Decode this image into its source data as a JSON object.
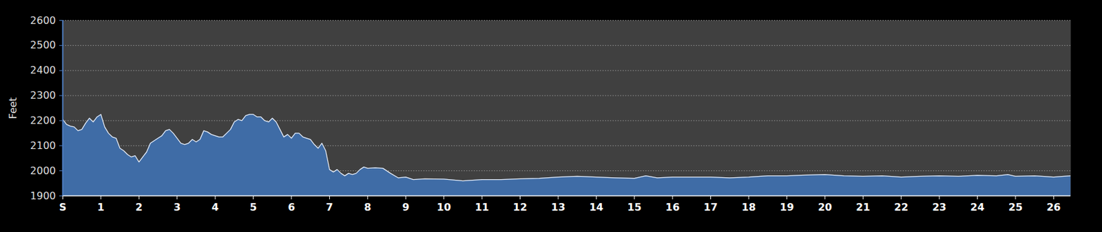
{
  "chart_data": {
    "type": "area",
    "ylabel": "Feet",
    "color": "#3f6ca6",
    "grid": true,
    "x": [
      0,
      0.1,
      0.2,
      0.3,
      0.4,
      0.5,
      0.6,
      0.7,
      0.8,
      0.9,
      1.0,
      1.1,
      1.2,
      1.3,
      1.4,
      1.5,
      1.6,
      1.7,
      1.8,
      1.9,
      2.0,
      2.1,
      2.2,
      2.3,
      2.4,
      2.5,
      2.6,
      2.7,
      2.8,
      2.9,
      3.0,
      3.1,
      3.2,
      3.3,
      3.4,
      3.5,
      3.6,
      3.7,
      3.8,
      3.9,
      4.0,
      4.1,
      4.2,
      4.3,
      4.4,
      4.5,
      4.6,
      4.7,
      4.8,
      4.9,
      5.0,
      5.1,
      5.2,
      5.3,
      5.4,
      5.5,
      5.6,
      5.7,
      5.8,
      5.9,
      6.0,
      6.1,
      6.2,
      6.3,
      6.4,
      6.5,
      6.6,
      6.7,
      6.8,
      6.9,
      7.0,
      7.1,
      7.2,
      7.3,
      7.4,
      7.5,
      7.6,
      7.7,
      7.8,
      7.9,
      8.0,
      8.2,
      8.4,
      8.5,
      8.6,
      8.8,
      9.0,
      9.2,
      9.5,
      10.0,
      10.5,
      11.0,
      11.5,
      12.0,
      12.5,
      13.0,
      13.5,
      14.0,
      14.5,
      15.0,
      15.3,
      15.6,
      16.0,
      16.5,
      17.0,
      17.5,
      18.0,
      18.5,
      19.0,
      19.5,
      20.0,
      20.5,
      21.0,
      21.5,
      22.0,
      22.5,
      23.0,
      23.5,
      24.0,
      24.5,
      24.8,
      25.0,
      25.5,
      26.0,
      26.45
    ],
    "values": [
      2205,
      2185,
      2178,
      2175,
      2160,
      2165,
      2190,
      2210,
      2195,
      2215,
      2225,
      2175,
      2150,
      2135,
      2130,
      2090,
      2080,
      2065,
      2055,
      2060,
      2035,
      2055,
      2075,
      2110,
      2120,
      2130,
      2140,
      2160,
      2165,
      2150,
      2130,
      2110,
      2105,
      2110,
      2125,
      2115,
      2125,
      2160,
      2155,
      2145,
      2140,
      2135,
      2135,
      2150,
      2165,
      2195,
      2205,
      2200,
      2220,
      2225,
      2225,
      2215,
      2215,
      2200,
      2195,
      2210,
      2195,
      2165,
      2135,
      2145,
      2130,
      2150,
      2150,
      2135,
      2130,
      2125,
      2105,
      2090,
      2110,
      2080,
      2005,
      1995,
      2005,
      1990,
      1980,
      1990,
      1985,
      1990,
      2005,
      2015,
      2010,
      2012,
      2010,
      2000,
      1990,
      1972,
      1975,
      1965,
      1968,
      1967,
      1960,
      1965,
      1965,
      1968,
      1970,
      1975,
      1978,
      1975,
      1972,
      1970,
      1980,
      1972,
      1975,
      1975,
      1975,
      1972,
      1975,
      1980,
      1980,
      1983,
      1985,
      1980,
      1978,
      1980,
      1975,
      1978,
      1980,
      1978,
      1982,
      1980,
      1985,
      1978,
      1980,
      1975,
      1980
    ],
    "xlim": [
      0,
      26.45
    ],
    "ylim": [
      1900,
      2600
    ],
    "xticks": [
      {
        "value": 0,
        "label": "S"
      },
      1,
      2,
      3,
      4,
      5,
      6,
      7,
      8,
      9,
      10,
      11,
      12,
      13,
      14,
      15,
      16,
      17,
      18,
      19,
      20,
      21,
      22,
      23,
      24,
      25,
      26
    ],
    "yticks": [
      1900,
      2000,
      2100,
      2200,
      2300,
      2400,
      2500,
      2600
    ]
  }
}
